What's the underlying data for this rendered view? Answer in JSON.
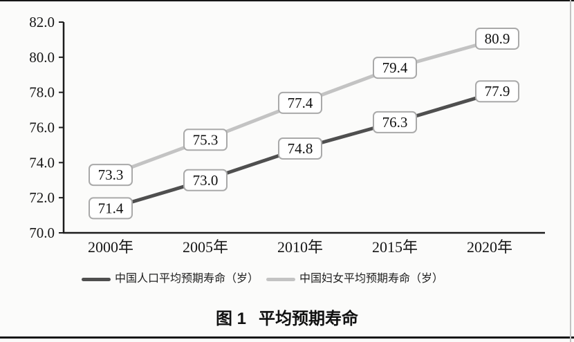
{
  "figure": {
    "caption_prefix": "图 1",
    "caption_title": "平均预期寿命"
  },
  "chart_data": {
    "type": "line",
    "title": "图 1 平均预期寿命",
    "categories": [
      "2000年",
      "2005年",
      "2010年",
      "2015年",
      "2020年"
    ],
    "series": [
      {
        "name": "中国人口平均预期寿命（岁）",
        "values": [
          71.4,
          73.0,
          74.8,
          76.3,
          77.9
        ],
        "color": "#4f4f4f"
      },
      {
        "name": "中国妇女平均预期寿命（岁）",
        "values": [
          73.3,
          75.3,
          77.4,
          79.4,
          80.9
        ],
        "color": "#c3c3c3"
      }
    ],
    "ylim": [
      70.0,
      82.0
    ],
    "ytick_labels": [
      "82.0",
      "80.0",
      "78.0",
      "76.0",
      "74.0",
      "72.0",
      "70.0"
    ],
    "grid": false,
    "legend_position": "bottom",
    "point_labels": true,
    "point_label_decimals": 1
  },
  "colors": {
    "axis": "#1c1c1c",
    "label_box_border": "#a9a9a9",
    "label_box_fill": "#ffffff",
    "page_rule": "#161616",
    "right_edge_line": "#c2c2c2"
  }
}
